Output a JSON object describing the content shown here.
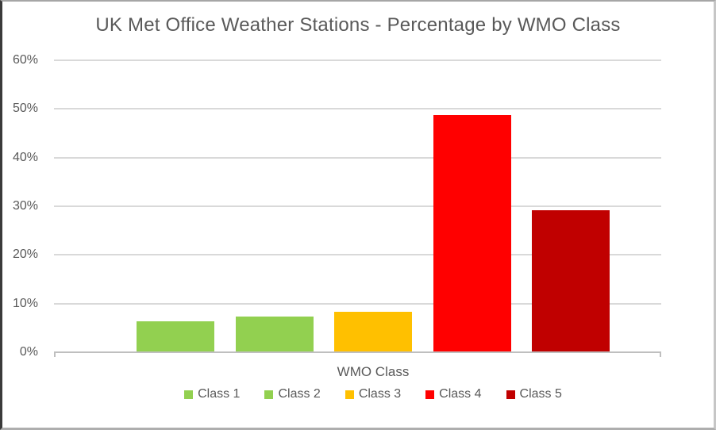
{
  "chart_data": {
    "type": "bar",
    "title": "UK Met Office Weather Stations - Percentage by WMO Class",
    "categories": [
      "Class 1",
      "Class 2",
      "Class 3",
      "Class 4",
      "Class 5"
    ],
    "values": [
      6.3,
      7.4,
      8.4,
      48.7,
      29.2
    ],
    "colors": [
      "#92D050",
      "#92D050",
      "#FFC000",
      "#FF0000",
      "#C00000"
    ],
    "xlabel": "WMO Class",
    "ylabel": "",
    "ylim": [
      0,
      60
    ],
    "ytick_interval": 10,
    "yticks": [
      "0%",
      "10%",
      "20%",
      "30%",
      "40%",
      "50%",
      "60%"
    ],
    "grid": true,
    "legend_position": "bottom",
    "legend": [
      {
        "label": "Class 1",
        "color": "#92D050"
      },
      {
        "label": "Class 2",
        "color": "#92D050"
      },
      {
        "label": "Class 3",
        "color": "#FFC000"
      },
      {
        "label": "Class 4",
        "color": "#FF0000"
      },
      {
        "label": "Class 5",
        "color": "#C00000"
      }
    ]
  },
  "styles": {
    "title_color": "#595959",
    "axis_text_color": "#595959",
    "gridline_color": "#D9D9D9",
    "axis_line_color": "#BFBFBF",
    "background": "#FFFFFF"
  }
}
